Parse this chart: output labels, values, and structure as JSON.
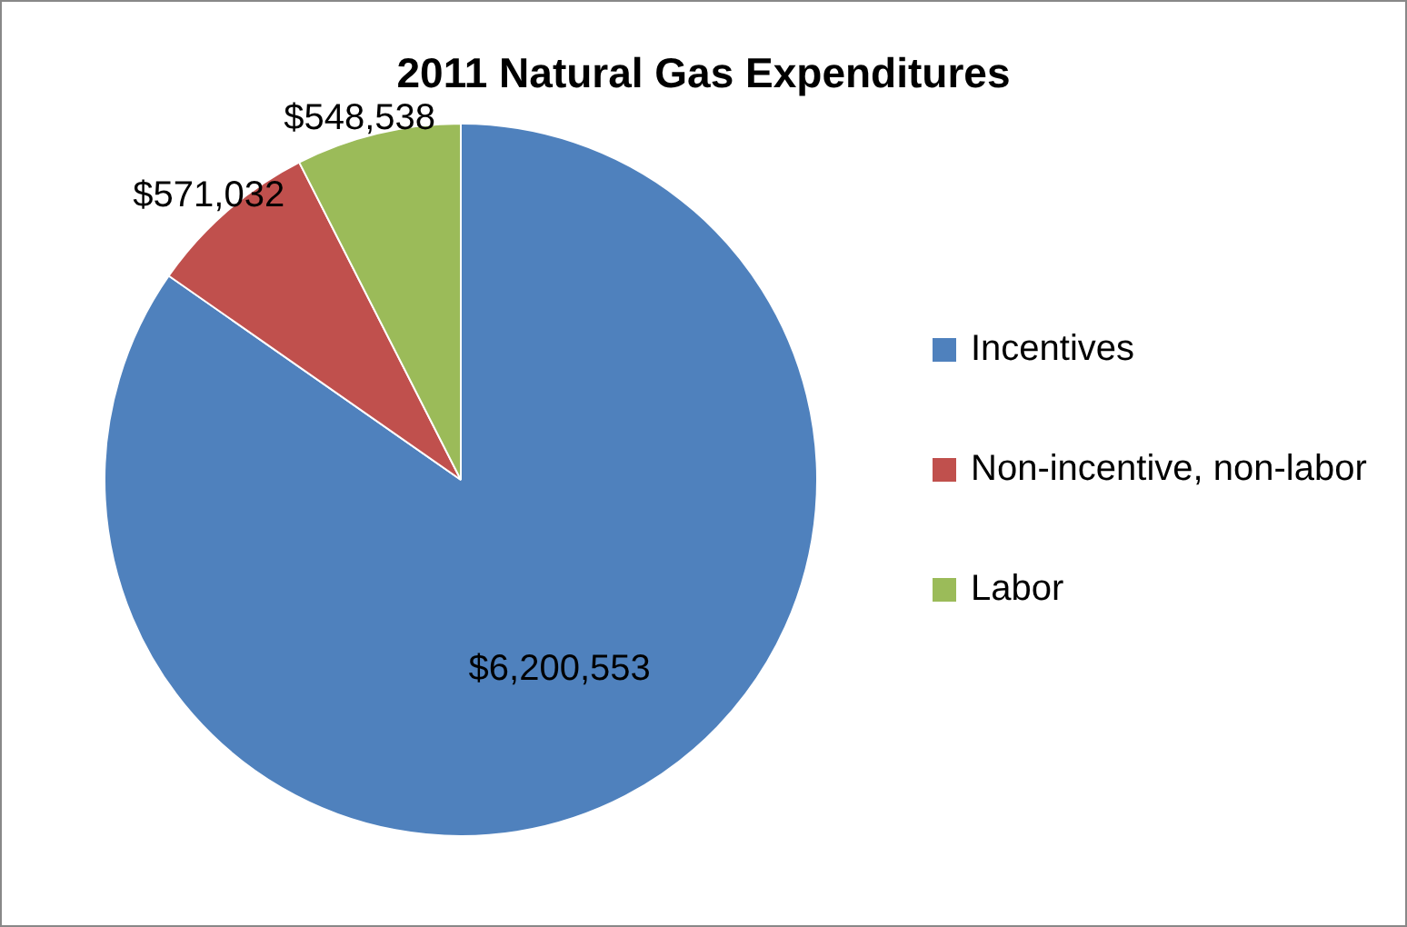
{
  "chart_data": {
    "type": "pie",
    "title": "2011 Natural Gas Expenditures",
    "categories": [
      "Incentives",
      "Non-incentive, non-labor",
      "Labor"
    ],
    "values": [
      6200553,
      571032,
      548538
    ],
    "colors": [
      "#4f81bd",
      "#c0504d",
      "#9bbb59"
    ],
    "value_labels": [
      "$6,200,553",
      "$571,032",
      "$548,538"
    ],
    "legend": "right"
  }
}
